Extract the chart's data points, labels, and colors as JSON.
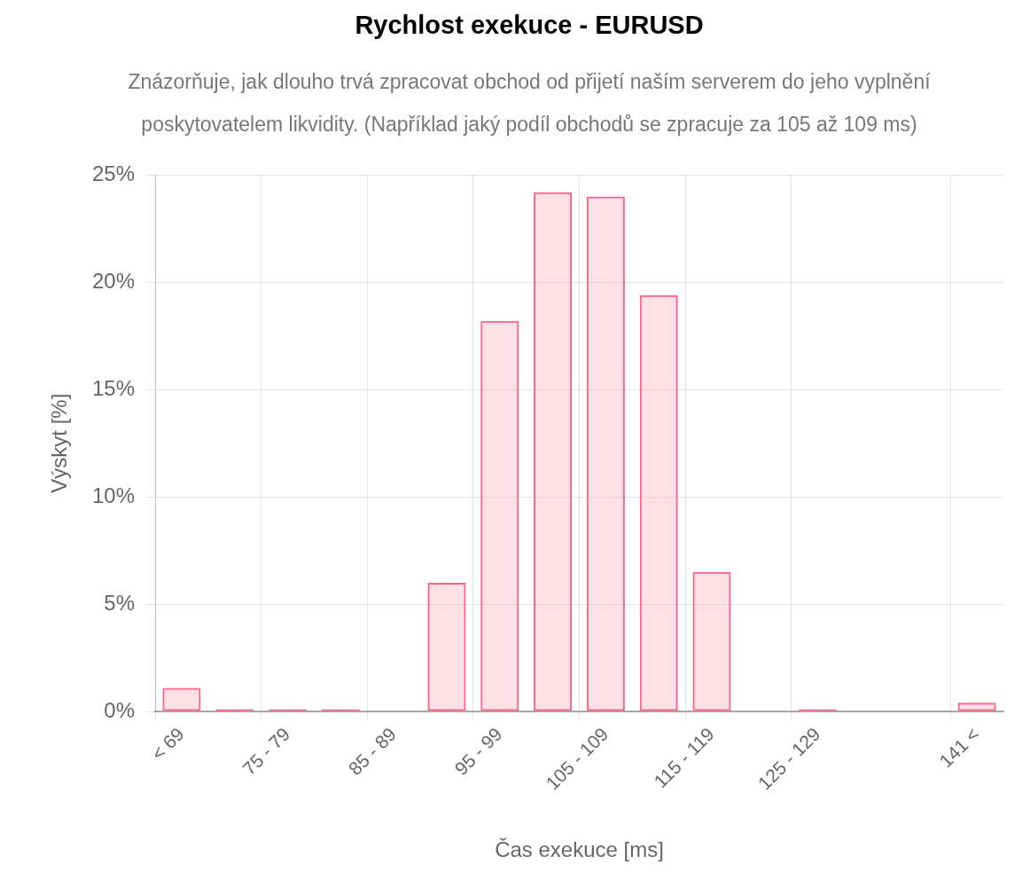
{
  "chart_data": {
    "type": "bar",
    "title": "Rychlost exekuce - EURUSD",
    "subtitle": "Znázorňuje, jak dlouho trvá zpracovat obchod od přijetí naším serverem do jeho vyplnění poskytovatelem likvidity. (Například jaký podíl obchodů se zpracuje za 105 až 109 ms)",
    "xlabel": "Čas exekuce [ms]",
    "ylabel": "Výskyt [%]",
    "categories": [
      "< 69",
      null,
      "75 - 79",
      null,
      "85 - 89",
      null,
      "95 - 99",
      null,
      "105 - 109",
      null,
      "115 - 119",
      null,
      "125 - 129",
      null,
      null,
      "141 <"
    ],
    "values": [
      1.1,
      0.1,
      0.1,
      0.1,
      0,
      6.0,
      18.2,
      24.2,
      24.0,
      19.4,
      6.5,
      0,
      0.1,
      0,
      0,
      0.4
    ],
    "color": "#ff6384",
    "ylim": [
      0,
      25
    ],
    "yticks": [
      {
        "value": 0,
        "label": "0%"
      },
      {
        "value": 5,
        "label": "5%"
      },
      {
        "value": 10,
        "label": "10%"
      },
      {
        "value": 15,
        "label": "15%"
      },
      {
        "value": 20,
        "label": "20%"
      },
      {
        "value": 25,
        "label": "25%"
      }
    ],
    "grid": true
  }
}
